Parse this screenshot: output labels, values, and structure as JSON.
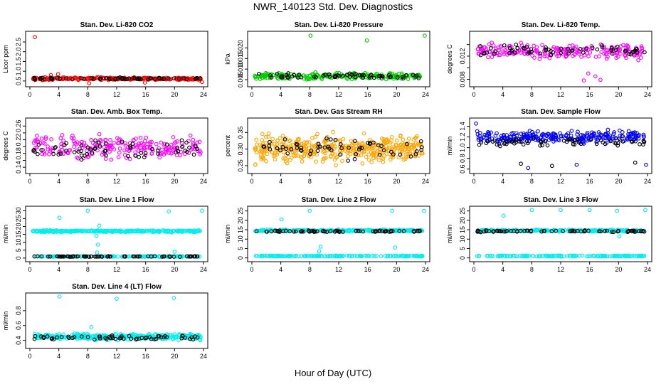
{
  "figure": {
    "title": "NWR_140123  Std. Dev. Diagnostics",
    "xlabel": "Hour of Day (UTC)"
  },
  "chart_data": [
    {
      "type": "scatter",
      "title": "Stan. Dev. Li-820 CO2",
      "ylabel": "Licor ppm",
      "xlim": [
        0,
        24
      ],
      "xticks": [
        0,
        4,
        8,
        12,
        16,
        20,
        24
      ],
      "ylim": [
        0.35,
        2.9
      ],
      "yticks": [
        0.5,
        1.0,
        1.5,
        2.0,
        2.5
      ],
      "ytick_labels": [
        "0.5",
        "1.0",
        "1.5",
        "2.0",
        "2.5"
      ],
      "series": [
        {
          "color": "#ff0000",
          "base": 0.62,
          "spread": 0.06,
          "n": 230,
          "extras": [
            [
              0.7,
              2.75
            ],
            [
              3.9,
              0.85
            ],
            [
              2.9,
              0.8
            ],
            [
              8.2,
              0.38
            ],
            [
              15.9,
              0.42
            ],
            [
              23.8,
              0.45
            ]
          ]
        },
        {
          "color": "#000000",
          "base": 0.62,
          "spread": 0.05,
          "n": 60,
          "extras": []
        }
      ]
    },
    {
      "type": "scatter",
      "title": "Stan. Dev. Li-820 Pressure",
      "ylabel": "kPa",
      "xlim": [
        0,
        24
      ],
      "xticks": [
        0,
        4,
        8,
        12,
        16,
        20,
        24
      ],
      "ylim": [
        0.003,
        0.0265
      ],
      "yticks": [
        0.005,
        0.01,
        0.015,
        0.02
      ],
      "ytick_labels": [
        "0.005",
        "0.010",
        "0.015",
        "0.020"
      ],
      "series": [
        {
          "color": "#00cc00",
          "base": 0.0068,
          "spread": 0.0013,
          "n": 230,
          "extras": [
            [
              8.1,
              0.0258
            ],
            [
              15.9,
              0.0235
            ],
            [
              23.9,
              0.0258
            ]
          ]
        },
        {
          "color": "#000000",
          "base": 0.0068,
          "spread": 0.0012,
          "n": 60,
          "extras": []
        }
      ]
    },
    {
      "type": "scatter",
      "title": "Stan. Dev. Li-820 Temp.",
      "ylabel": "degrees C",
      "xlim": [
        0,
        24
      ],
      "xticks": [
        0,
        4,
        8,
        12,
        16,
        20,
        24
      ],
      "ylim": [
        0.0072,
        0.0158
      ],
      "yticks": [
        0.008,
        0.01,
        0.012,
        0.014
      ],
      "ytick_labels": [
        "0.008",
        "",
        "0.012",
        ""
      ],
      "series": [
        {
          "color": "#ff00ff",
          "base": 0.0128,
          "spread": 0.0011,
          "n": 220,
          "extras": [
            [
              15.2,
              0.0078
            ],
            [
              16.8,
              0.0085
            ],
            [
              17.5,
              0.0079
            ],
            [
              15.8,
              0.009
            ]
          ]
        },
        {
          "color": "#000000",
          "base": 0.013,
          "spread": 0.0008,
          "n": 60,
          "extras": []
        }
      ]
    },
    {
      "type": "scatter",
      "title": "Stan. Dev. Amb. Box Temp.",
      "ylabel": "degrees C",
      "xlim": [
        0,
        24
      ],
      "xticks": [
        0,
        4,
        8,
        12,
        16,
        20,
        24
      ],
      "ylim": [
        0.13,
        0.275
      ],
      "yticks": [
        0.14,
        0.16,
        0.18,
        0.2,
        0.22,
        0.24,
        0.26
      ],
      "ytick_labels": [
        "0.14",
        "",
        "0.18",
        "",
        "0.22",
        "",
        "0.26"
      ],
      "series": [
        {
          "color": "#ff00ff",
          "base": 0.2,
          "spread": 0.03,
          "n": 220,
          "extras": []
        },
        {
          "color": "#000000",
          "base": 0.19,
          "spread": 0.025,
          "n": 60,
          "extras": []
        }
      ]
    },
    {
      "type": "scatter",
      "title": "Stan. Dev. Gas Stream RH",
      "ylabel": "percent",
      "xlim": [
        0,
        24
      ],
      "xticks": [
        0,
        4,
        8,
        12,
        16,
        20,
        24
      ],
      "ylim": [
        0.235,
        0.385
      ],
      "yticks": [
        0.25,
        0.3,
        0.35
      ],
      "ytick_labels": [
        "0.25",
        "0.30",
        "0.35"
      ],
      "series": [
        {
          "color": "#ffa500",
          "base": 0.3,
          "spread": 0.035,
          "n": 420,
          "extras": []
        },
        {
          "color": "#000000",
          "base": 0.3,
          "spread": 0.03,
          "n": 60,
          "extras": []
        }
      ]
    },
    {
      "type": "scatter",
      "title": "Stan. Dev. Sample Flow",
      "ylabel": "ml/min",
      "xlim": [
        0,
        24
      ],
      "xticks": [
        0,
        4,
        8,
        12,
        16,
        20,
        24
      ],
      "ylim": [
        0.57,
        1.5
      ],
      "yticks": [
        0.6,
        0.8,
        1.0,
        1.2,
        1.4
      ],
      "ytick_labels": [
        "0.6",
        "0.8",
        "1.0",
        "1.2",
        "1.4"
      ],
      "series": [
        {
          "color": "#0000ff",
          "base": 1.2,
          "spread": 0.1,
          "n": 260,
          "extras": [
            [
              7.5,
              0.62
            ],
            [
              14.2,
              0.68
            ],
            [
              23.8,
              0.68
            ],
            [
              0.3,
              1.45
            ]
          ]
        },
        {
          "color": "#000000",
          "base": 1.1,
          "spread": 0.06,
          "n": 60,
          "extras": [
            [
              6.5,
              0.7
            ],
            [
              10.8,
              0.66
            ],
            [
              22.3,
              0.72
            ]
          ]
        }
      ]
    },
    {
      "type": "scatter",
      "title": "Stan. Dev. Line 1 Flow",
      "ylabel": "ml/min",
      "xlim": [
        0,
        24
      ],
      "xticks": [
        0,
        4,
        8,
        12,
        16,
        20,
        24
      ],
      "ylim": [
        -0.5,
        31
      ],
      "yticks": [
        0,
        5,
        10,
        15,
        20,
        25,
        30
      ],
      "ytick_labels": [
        "0",
        "5",
        "10",
        "15",
        "20",
        "25",
        "30"
      ],
      "series": [
        {
          "color": "#00eeee",
          "base": 17,
          "spread": 0.5,
          "n": 300,
          "extras": [
            [
              4.1,
              25.5
            ],
            [
              8.0,
              30
            ],
            [
              9.3,
              3.5
            ],
            [
              9.4,
              8.5
            ],
            [
              9.2,
              14
            ],
            [
              9.6,
              20.5
            ],
            [
              19.2,
              29.5
            ],
            [
              23.8,
              30
            ],
            [
              20,
              4
            ]
          ]
        },
        {
          "color": "#00eeee",
          "base": 1.0,
          "spread": 0.2,
          "n": 150,
          "extras": []
        },
        {
          "color": "#000000",
          "base": 1.0,
          "spread": 0.15,
          "n": 70,
          "extras": []
        }
      ]
    },
    {
      "type": "scatter",
      "title": "Stan. Dev. Line 2 Flow",
      "ylabel": "ml/min",
      "xlim": [
        0,
        24
      ],
      "xticks": [
        0,
        4,
        8,
        12,
        16,
        20,
        24
      ],
      "ylim": [
        -0.5,
        26
      ],
      "yticks": [
        0,
        5,
        10,
        15,
        20,
        25
      ],
      "ytick_labels": [
        "0",
        "5",
        "10",
        "15",
        "20",
        "25"
      ],
      "series": [
        {
          "color": "#00eeee",
          "base": 14.5,
          "spread": 0.45,
          "n": 300,
          "extras": [
            [
              4.1,
              20.5
            ],
            [
              8.0,
              25
            ],
            [
              9.3,
              3.5
            ],
            [
              9.5,
              6
            ],
            [
              19.8,
              5.5
            ],
            [
              23.8,
              25
            ],
            [
              19.4,
              25
            ]
          ]
        },
        {
          "color": "#000000",
          "base": 14.2,
          "spread": 0.35,
          "n": 70,
          "extras": []
        },
        {
          "color": "#00eeee",
          "base": 1.0,
          "spread": 0.2,
          "n": 150,
          "extras": []
        }
      ]
    },
    {
      "type": "scatter",
      "title": "Stan. Dev. Line 3 Flow",
      "ylabel": "ml/min",
      "xlim": [
        0,
        24
      ],
      "xticks": [
        0,
        4,
        8,
        12,
        16,
        20,
        24
      ],
      "ylim": [
        -0.5,
        26
      ],
      "yticks": [
        0,
        5,
        10,
        15,
        20,
        25
      ],
      "ytick_labels": [
        "0",
        "5",
        "10",
        "15",
        "20",
        "25"
      ],
      "series": [
        {
          "color": "#00eeee",
          "base": 14.5,
          "spread": 0.45,
          "n": 300,
          "extras": [
            [
              4.1,
              22.5
            ],
            [
              8.0,
              25.5
            ],
            [
              12.0,
              25.5
            ],
            [
              16.0,
              25.5
            ],
            [
              19.8,
              25
            ],
            [
              20.1,
              11.5
            ],
            [
              23.7,
              25.5
            ]
          ]
        },
        {
          "color": "#000000",
          "base": 14.2,
          "spread": 0.35,
          "n": 70,
          "extras": []
        },
        {
          "color": "#00eeee",
          "base": 1.0,
          "spread": 0.2,
          "n": 150,
          "extras": []
        }
      ]
    },
    {
      "type": "scatter",
      "title": "Stan. Dev. Line 4 (LT) Flow",
      "ylabel": "ml/min",
      "xlim": [
        0,
        24
      ],
      "xticks": [
        0,
        4,
        8,
        12,
        16,
        20,
        24
      ],
      "ylim": [
        0.33,
        1.0
      ],
      "yticks": [
        0.4,
        0.6,
        0.8
      ],
      "ytick_labels": [
        "0.4",
        "0.6",
        "0.8"
      ],
      "series": [
        {
          "color": "#00eeee",
          "base": 0.45,
          "spread": 0.035,
          "n": 320,
          "extras": [
            [
              4.1,
              0.99
            ],
            [
              12.0,
              0.96
            ],
            [
              19.9,
              0.97
            ],
            [
              8.5,
              0.58
            ]
          ]
        },
        {
          "color": "#000000",
          "base": 0.44,
          "spread": 0.03,
          "n": 60,
          "extras": []
        }
      ]
    }
  ]
}
